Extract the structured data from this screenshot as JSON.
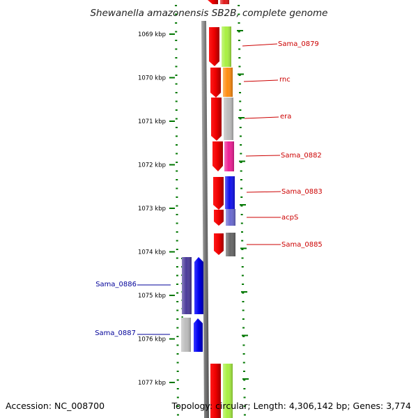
{
  "title": "Shewanella amazonensis SB2B, complete genome",
  "accession": "Accession: NC_008700",
  "topology": "Topology: circular; Length: 4,306,142 bp; Genes: 3,774",
  "colors": {
    "forward_label": "#cc0000",
    "reverse_label": "#000099",
    "backbone": "#808080",
    "tick": "#007700",
    "strand_red": "#ee0000"
  },
  "ticks": [
    "1069 kbp",
    "1070 kbp",
    "1071 kbp",
    "1072 kbp",
    "1073 kbp",
    "1074 kbp",
    "1075 kbp",
    "1076 kbp",
    "1077 kbp"
  ],
  "forward_genes": [
    {
      "label": "",
      "color": "#e21a1a"
    },
    {
      "label": "Sama_0879",
      "color": "#a8f040"
    },
    {
      "label": "rnc",
      "color": "#ff8c10"
    },
    {
      "label": "era",
      "color": "#bdbdbd"
    },
    {
      "label": "Sama_0882",
      "color": "#ee1f96"
    },
    {
      "label": "Sama_0883",
      "color": "#1010ee"
    },
    {
      "label": "acpS",
      "color": "#6a6ad0"
    },
    {
      "label": "Sama_0885",
      "color": "#666666"
    },
    {
      "label": "",
      "color": "#a8f040"
    }
  ],
  "reverse_genes": [
    {
      "label": "Sama_0886",
      "color": "#4a3a9a"
    },
    {
      "label": "Sama_0887",
      "color": "#bdbdbd"
    }
  ]
}
